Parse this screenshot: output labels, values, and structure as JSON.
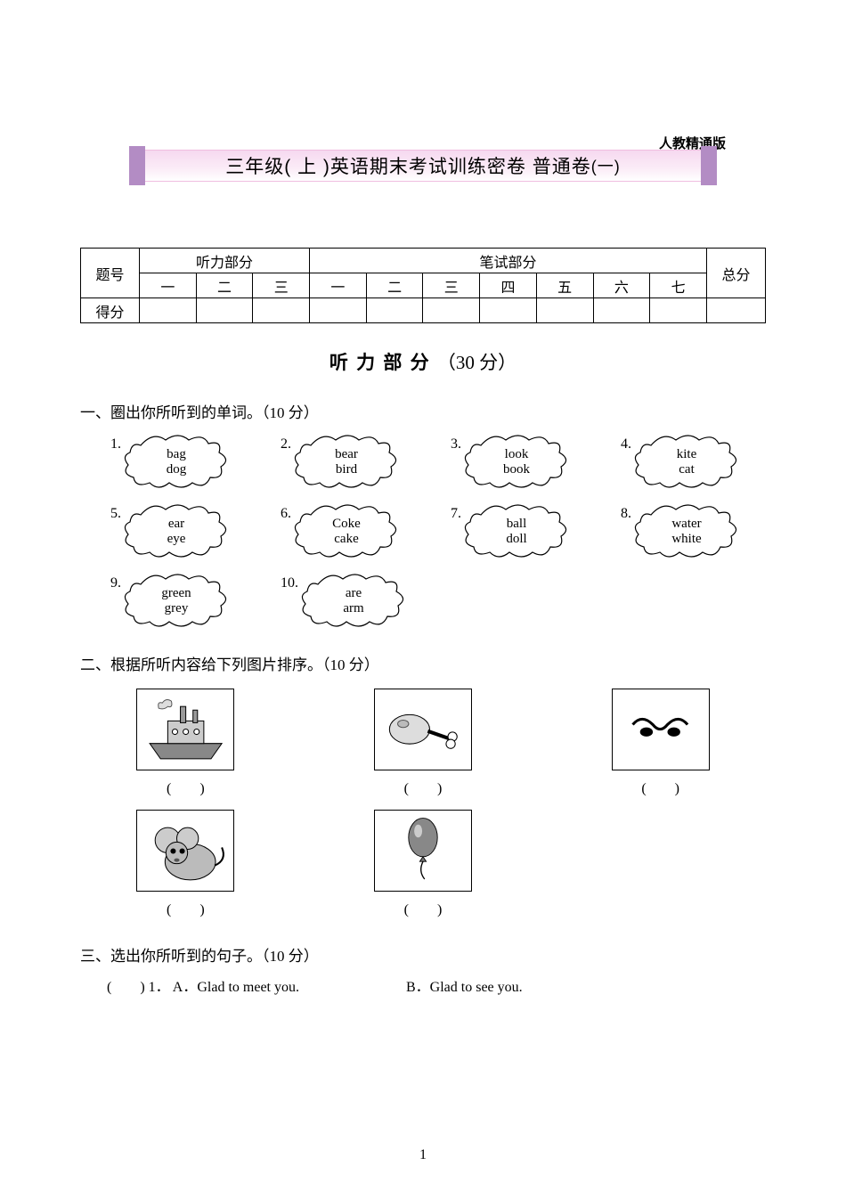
{
  "version_label": "人教精通版",
  "title_main": "三年级( 上 )英语期末考试训练密卷  普通卷",
  "title_suffix": "(一)",
  "score_table": {
    "row1_label": "题号",
    "listening_header": "听力部分",
    "written_header": "笔试部分",
    "total_header": "总分",
    "listening_cols": [
      "一",
      "二",
      "三"
    ],
    "written_cols": [
      "一",
      "二",
      "三",
      "四",
      "五",
      "六",
      "七"
    ],
    "row3_label": "得分"
  },
  "listening_section": {
    "title_kai": "听 力 部 分",
    "title_points": "（30 分）"
  },
  "q1": {
    "heading": "一、圈出你所听到的单词。（10 分）",
    "items": [
      {
        "num": "1.",
        "w": [
          "bag",
          "dog"
        ]
      },
      {
        "num": "2.",
        "w": [
          "bear",
          "bird"
        ]
      },
      {
        "num": "3.",
        "w": [
          "look",
          "book"
        ]
      },
      {
        "num": "4.",
        "w": [
          "kite",
          "cat"
        ]
      },
      {
        "num": "5.",
        "w": [
          "ear",
          "eye"
        ]
      },
      {
        "num": "6.",
        "w": [
          "Coke",
          "cake"
        ]
      },
      {
        "num": "7.",
        "w": [
          "ball",
          "doll"
        ]
      },
      {
        "num": "8.",
        "w": [
          "water",
          "white"
        ]
      },
      {
        "num": "9.",
        "w": [
          "green",
          "grey"
        ]
      },
      {
        "num": "10.",
        "w": [
          "are",
          "arm"
        ]
      }
    ]
  },
  "q2": {
    "heading": "二、根据所听内容给下列图片排序。（10 分）",
    "items": [
      {
        "icon": "ship",
        "blank": "(　　)"
      },
      {
        "icon": "chicken-leg",
        "blank": "(　　)"
      },
      {
        "icon": "nose",
        "blank": "(　　)"
      },
      {
        "icon": "mouse",
        "blank": "(　　)"
      },
      {
        "icon": "balloon",
        "blank": "(　　)"
      }
    ]
  },
  "q3": {
    "heading": "三、选出你所听到的句子。（10 分）",
    "line": {
      "paren": "(　　) 1．",
      "optA": "A．Glad to meet you.",
      "optB": "B．Glad to see you."
    }
  },
  "page_number": "1",
  "colors": {
    "banner_bar": "#b38cc4",
    "banner_bg_top": "#f6d9f0",
    "text": "#000000",
    "background": "#ffffff"
  }
}
